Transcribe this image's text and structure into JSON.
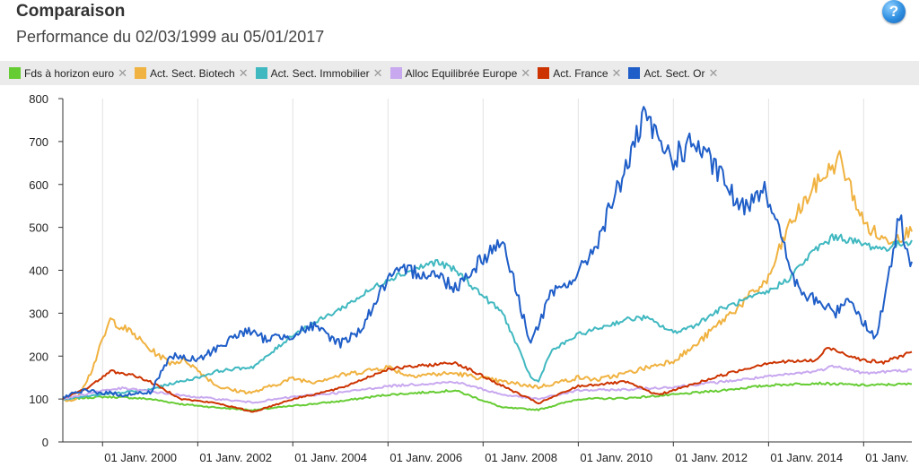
{
  "header": {
    "title": "Comparaison",
    "subtitle": "Performance du 02/03/1999 au 05/01/2017",
    "help_label": "?"
  },
  "legend": {
    "close_glyph": "✕"
  },
  "chart_data": {
    "type": "line",
    "x_start": "1999-03-02",
    "x_end": "2017-01-05",
    "ylim": [
      0,
      800
    ],
    "y_ticks": [
      0,
      100,
      200,
      300,
      400,
      500,
      600,
      700,
      800
    ],
    "x_ticks": [
      {
        "date": "2000-01-01",
        "label": "01 Janv. 2000"
      },
      {
        "date": "2002-01-01",
        "label": "01 Janv. 2002"
      },
      {
        "date": "2004-01-01",
        "label": "01 Janv. 2004"
      },
      {
        "date": "2006-01-01",
        "label": "01 Janv. 2006"
      },
      {
        "date": "2008-01-01",
        "label": "01 Janv. 2008"
      },
      {
        "date": "2010-01-01",
        "label": "01 Janv. 2010"
      },
      {
        "date": "2012-01-01",
        "label": "01 Janv. 2012"
      },
      {
        "date": "2014-01-01",
        "label": "01 Janv. 2014"
      },
      {
        "date": "2016-01-01",
        "label": "01 Janv."
      }
    ],
    "grid": "vertical",
    "legend_position": "top",
    "series": [
      {
        "name": "Fds à horizon euro",
        "color": "#66cc33",
        "points": [
          [
            "1999-03-02",
            100
          ],
          [
            "2000-01-01",
            105
          ],
          [
            "2000-06-01",
            104
          ],
          [
            "2001-01-01",
            100
          ],
          [
            "2001-09-01",
            88
          ],
          [
            "2002-06-01",
            80
          ],
          [
            "2003-03-01",
            74
          ],
          [
            "2004-01-01",
            84
          ],
          [
            "2005-01-01",
            95
          ],
          [
            "2006-01-01",
            110
          ],
          [
            "2007-06-01",
            120
          ],
          [
            "2008-06-01",
            80
          ],
          [
            "2009-03-01",
            75
          ],
          [
            "2010-01-01",
            100
          ],
          [
            "2011-01-01",
            102
          ],
          [
            "2012-01-01",
            110
          ],
          [
            "2013-01-01",
            120
          ],
          [
            "2014-01-01",
            132
          ],
          [
            "2015-01-01",
            137
          ],
          [
            "2016-01-01",
            132
          ],
          [
            "2017-01-05",
            135
          ]
        ]
      },
      {
        "name": "Act. Sect. Biotech",
        "color": "#f0b240",
        "points": [
          [
            "1999-03-02",
            100
          ],
          [
            "1999-06-01",
            95
          ],
          [
            "1999-10-01",
            160
          ],
          [
            "2000-03-01",
            285
          ],
          [
            "2000-09-01",
            250
          ],
          [
            "2001-01-01",
            215
          ],
          [
            "2001-06-01",
            185
          ],
          [
            "2001-10-01",
            190
          ],
          [
            "2002-06-01",
            130
          ],
          [
            "2002-10-01",
            120
          ],
          [
            "2003-03-01",
            115
          ],
          [
            "2004-01-01",
            148
          ],
          [
            "2004-06-01",
            140
          ],
          [
            "2005-01-01",
            155
          ],
          [
            "2006-01-01",
            175
          ],
          [
            "2006-06-01",
            155
          ],
          [
            "2007-06-01",
            160
          ],
          [
            "2008-06-01",
            140
          ],
          [
            "2009-03-01",
            128
          ],
          [
            "2010-01-01",
            150
          ],
          [
            "2010-06-01",
            145
          ],
          [
            "2011-01-01",
            160
          ],
          [
            "2012-01-01",
            190
          ],
          [
            "2012-06-01",
            220
          ],
          [
            "2013-01-01",
            280
          ],
          [
            "2013-06-01",
            320
          ],
          [
            "2014-01-01",
            380
          ],
          [
            "2014-06-01",
            500
          ],
          [
            "2015-01-01",
            600
          ],
          [
            "2015-07-01",
            660
          ],
          [
            "2016-01-01",
            510
          ],
          [
            "2016-06-01",
            470
          ],
          [
            "2017-01-05",
            490
          ]
        ]
      },
      {
        "name": "Act. Sect. Immobilier",
        "color": "#40b8c0",
        "points": [
          [
            "1999-03-02",
            100
          ],
          [
            "2000-01-01",
            110
          ],
          [
            "2000-06-01",
            115
          ],
          [
            "2001-01-01",
            122
          ],
          [
            "2001-06-01",
            135
          ],
          [
            "2002-01-01",
            150
          ],
          [
            "2002-06-01",
            165
          ],
          [
            "2003-03-01",
            175
          ],
          [
            "2003-06-01",
            195
          ],
          [
            "2004-01-01",
            250
          ],
          [
            "2005-01-01",
            310
          ],
          [
            "2006-01-01",
            380
          ],
          [
            "2007-01-01",
            420
          ],
          [
            "2007-06-01",
            400
          ],
          [
            "2008-01-01",
            340
          ],
          [
            "2008-06-01",
            300
          ],
          [
            "2009-01-01",
            150
          ],
          [
            "2009-03-01",
            140
          ],
          [
            "2009-06-01",
            210
          ],
          [
            "2010-01-01",
            250
          ],
          [
            "2011-01-01",
            285
          ],
          [
            "2011-06-01",
            290
          ],
          [
            "2012-01-01",
            255
          ],
          [
            "2012-06-01",
            270
          ],
          [
            "2013-01-01",
            310
          ],
          [
            "2014-01-01",
            350
          ],
          [
            "2014-06-01",
            380
          ],
          [
            "2015-01-01",
            450
          ],
          [
            "2015-06-01",
            480
          ],
          [
            "2016-01-01",
            460
          ],
          [
            "2016-06-01",
            450
          ],
          [
            "2017-01-05",
            470
          ]
        ]
      },
      {
        "name": "Alloc Equilibrée Europe",
        "color": "#c8a8ef",
        "points": [
          [
            "1999-03-02",
            100
          ],
          [
            "2000-01-01",
            120
          ],
          [
            "2000-06-01",
            125
          ],
          [
            "2001-01-01",
            118
          ],
          [
            "2001-09-01",
            108
          ],
          [
            "2002-06-01",
            100
          ],
          [
            "2003-03-01",
            92
          ],
          [
            "2004-01-01",
            105
          ],
          [
            "2005-01-01",
            115
          ],
          [
            "2006-01-01",
            130
          ],
          [
            "2007-06-01",
            140
          ],
          [
            "2008-06-01",
            110
          ],
          [
            "2009-03-01",
            100
          ],
          [
            "2010-01-01",
            120
          ],
          [
            "2011-01-01",
            122
          ],
          [
            "2012-01-01",
            128
          ],
          [
            "2013-01-01",
            140
          ],
          [
            "2014-01-01",
            152
          ],
          [
            "2015-01-01",
            165
          ],
          [
            "2015-06-01",
            178
          ],
          [
            "2016-01-01",
            160
          ],
          [
            "2017-01-05",
            168
          ]
        ]
      },
      {
        "name": "Act. France",
        "color": "#cc3300",
        "points": [
          [
            "1999-03-02",
            100
          ],
          [
            "1999-10-01",
            130
          ],
          [
            "2000-03-01",
            165
          ],
          [
            "2000-09-01",
            155
          ],
          [
            "2001-01-01",
            140
          ],
          [
            "2001-09-01",
            100
          ],
          [
            "2002-06-01",
            90
          ],
          [
            "2003-03-01",
            70
          ],
          [
            "2004-01-01",
            100
          ],
          [
            "2005-01-01",
            125
          ],
          [
            "2006-01-01",
            170
          ],
          [
            "2007-06-01",
            185
          ],
          [
            "2008-06-01",
            130
          ],
          [
            "2009-03-01",
            90
          ],
          [
            "2010-01-01",
            130
          ],
          [
            "2011-01-01",
            140
          ],
          [
            "2011-09-01",
            110
          ],
          [
            "2012-01-01",
            120
          ],
          [
            "2013-01-01",
            155
          ],
          [
            "2014-01-01",
            185
          ],
          [
            "2015-01-01",
            190
          ],
          [
            "2015-04-01",
            220
          ],
          [
            "2016-01-01",
            190
          ],
          [
            "2016-06-01",
            185
          ],
          [
            "2017-01-05",
            210
          ]
        ]
      },
      {
        "name": "Act. Sect. Or",
        "color": "#1f5ec8",
        "points": [
          [
            "1999-03-02",
            105
          ],
          [
            "1999-09-01",
            120
          ],
          [
            "2000-01-01",
            115
          ],
          [
            "2000-06-01",
            110
          ],
          [
            "2001-01-01",
            115
          ],
          [
            "2001-06-01",
            200
          ],
          [
            "2002-01-01",
            190
          ],
          [
            "2002-06-01",
            220
          ],
          [
            "2003-01-01",
            260
          ],
          [
            "2003-06-01",
            240
          ],
          [
            "2004-01-01",
            250
          ],
          [
            "2004-06-01",
            270
          ],
          [
            "2005-01-01",
            230
          ],
          [
            "2005-06-01",
            260
          ],
          [
            "2006-01-01",
            380
          ],
          [
            "2006-06-01",
            400
          ],
          [
            "2007-01-01",
            390
          ],
          [
            "2007-06-01",
            360
          ],
          [
            "2008-01-01",
            430
          ],
          [
            "2008-06-01",
            470
          ],
          [
            "2008-10-01",
            330
          ],
          [
            "2009-01-01",
            230
          ],
          [
            "2009-06-01",
            340
          ],
          [
            "2010-01-01",
            390
          ],
          [
            "2010-06-01",
            470
          ],
          [
            "2011-01-01",
            640
          ],
          [
            "2011-06-01",
            760
          ],
          [
            "2011-09-01",
            700
          ],
          [
            "2012-01-01",
            660
          ],
          [
            "2012-06-01",
            700
          ],
          [
            "2013-01-01",
            620
          ],
          [
            "2013-06-01",
            540
          ],
          [
            "2013-12-01",
            600
          ],
          [
            "2014-06-01",
            420
          ],
          [
            "2014-09-01",
            345
          ],
          [
            "2015-01-01",
            330
          ],
          [
            "2015-06-01",
            300
          ],
          [
            "2015-09-01",
            340
          ],
          [
            "2016-01-01",
            280
          ],
          [
            "2016-04-01",
            240
          ],
          [
            "2016-08-01",
            410
          ],
          [
            "2016-10-01",
            530
          ],
          [
            "2016-12-01",
            440
          ],
          [
            "2017-01-05",
            420
          ]
        ]
      }
    ]
  }
}
